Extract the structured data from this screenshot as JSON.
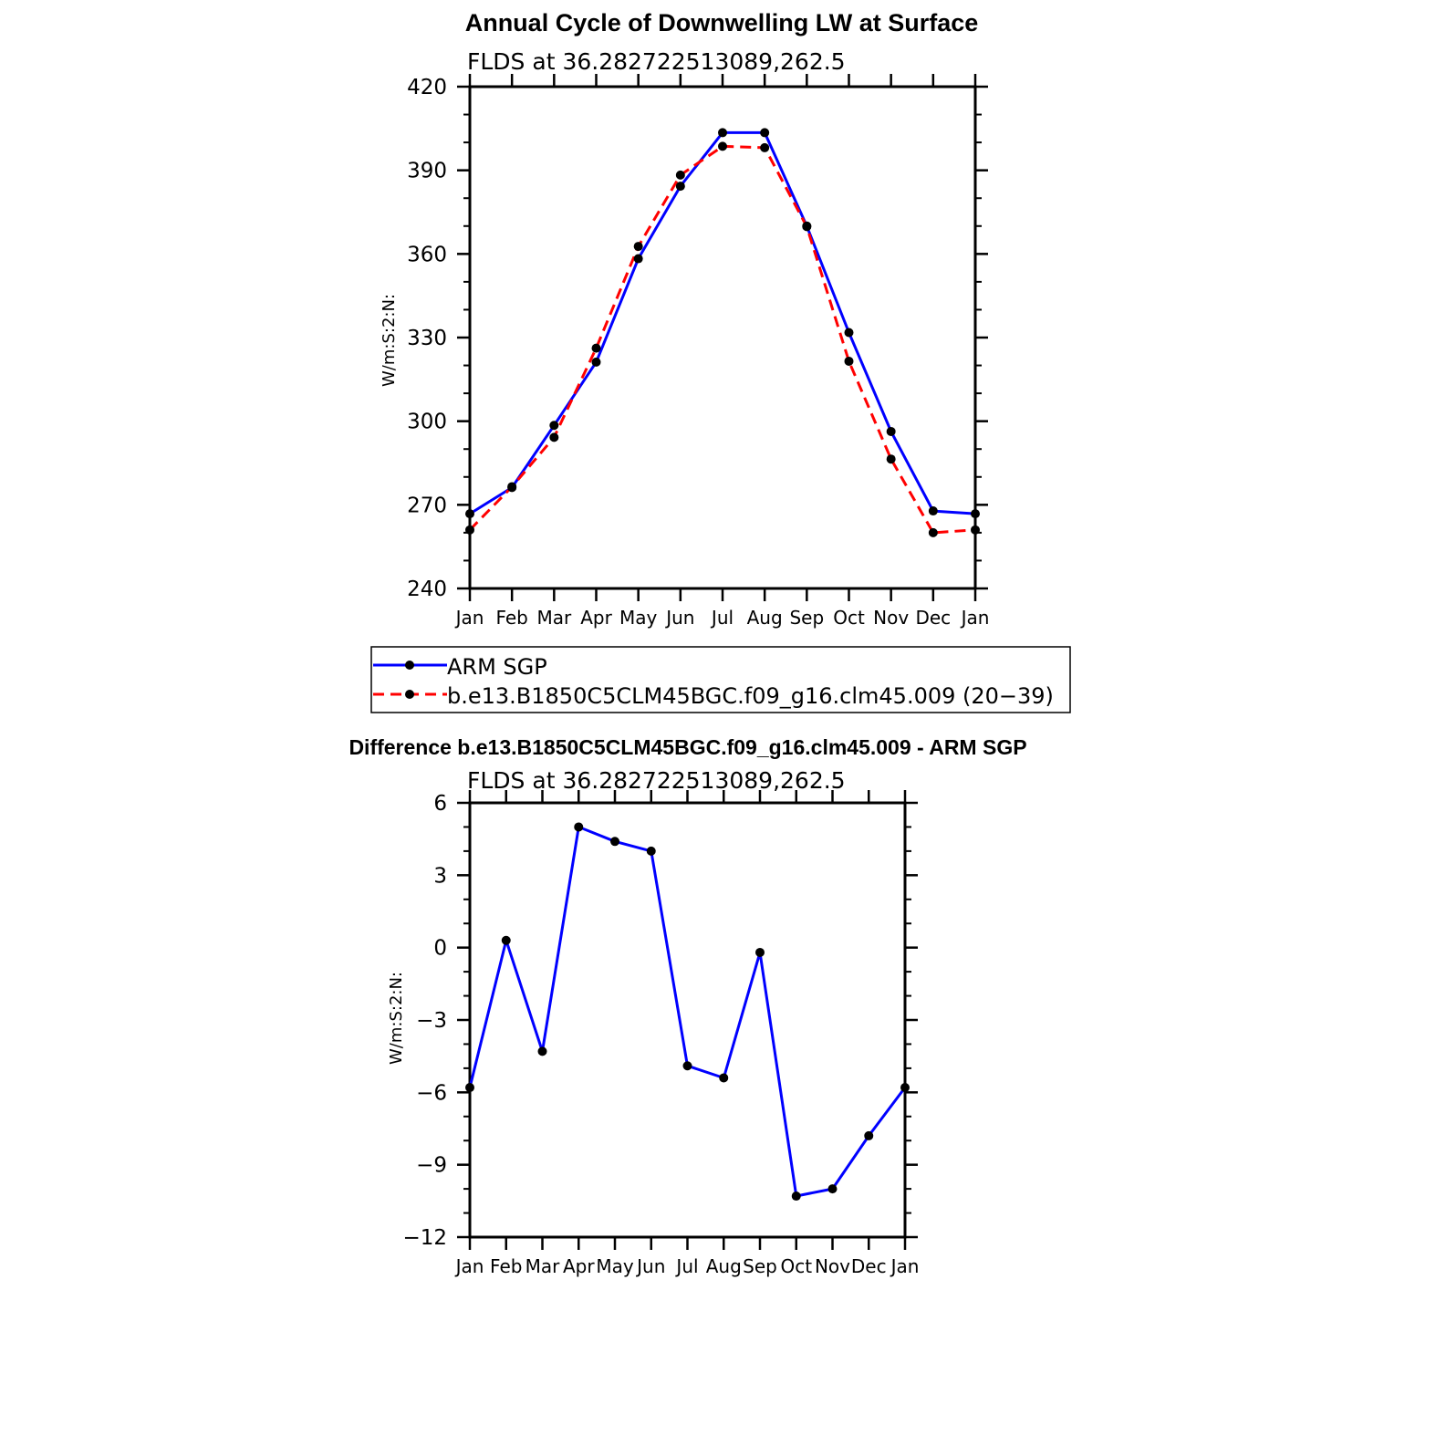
{
  "chart_data": [
    {
      "type": "line",
      "title": "Annual Cycle of Downwelling LW at Surface",
      "subtitle": "FLDS at 36.282722513089,262.5",
      "ylabel": "W/m:S:2:N:",
      "xlabel": "",
      "categories": [
        "Jan",
        "Feb",
        "Mar",
        "Apr",
        "May",
        "Jun",
        "Jul",
        "Aug",
        "Sep",
        "Oct",
        "Nov",
        "Dec",
        "Jan"
      ],
      "ylim": [
        240,
        420
      ],
      "yticks": [
        240,
        270,
        300,
        330,
        360,
        390,
        420
      ],
      "grid": false,
      "legend_position": "bottom",
      "series": [
        {
          "name": "ARM SGP",
          "color": "#0000ff",
          "dash": "solid",
          "values": [
            266.8,
            276.2,
            298.5,
            321.2,
            358.3,
            384.3,
            403.5,
            403.5,
            370.0,
            331.8,
            296.3,
            267.8,
            266.8
          ]
        },
        {
          "name": "b.e13.B1850C5CLM45BGC.f09_g16.clm45.009 (20−39)",
          "color": "#ff0000",
          "dash": "dashed",
          "values": [
            261.0,
            276.5,
            294.2,
            326.2,
            362.7,
            388.3,
            398.6,
            398.1,
            369.8,
            321.5,
            286.4,
            260.0,
            261.0
          ]
        }
      ]
    },
    {
      "type": "line",
      "title": "Difference b.e13.B1850C5CLM45BGC.f09_g16.clm45.009 - ARM SGP",
      "subtitle": "FLDS at 36.282722513089,262.5",
      "ylabel": "W/m:S:2:N:",
      "xlabel": "",
      "categories": [
        "Jan",
        "Feb",
        "Mar",
        "Apr",
        "May",
        "Jun",
        "Jul",
        "Aug",
        "Sep",
        "Oct",
        "Nov",
        "Dec",
        "Jan"
      ],
      "ylim": [
        -12,
        6
      ],
      "yticks": [
        -12,
        -9,
        -6,
        -3,
        0,
        3,
        6
      ],
      "ytick_labels": [
        "−12",
        "−9",
        "−6",
        "−3",
        "0",
        "3",
        "6"
      ],
      "grid": false,
      "series": [
        {
          "color": "#0000ff",
          "dash": "solid",
          "values": [
            -5.8,
            0.3,
            -4.3,
            5.0,
            4.4,
            4.0,
            -4.9,
            -5.4,
            -0.2,
            -10.3,
            -10.0,
            -7.8,
            -5.8
          ]
        }
      ]
    }
  ]
}
